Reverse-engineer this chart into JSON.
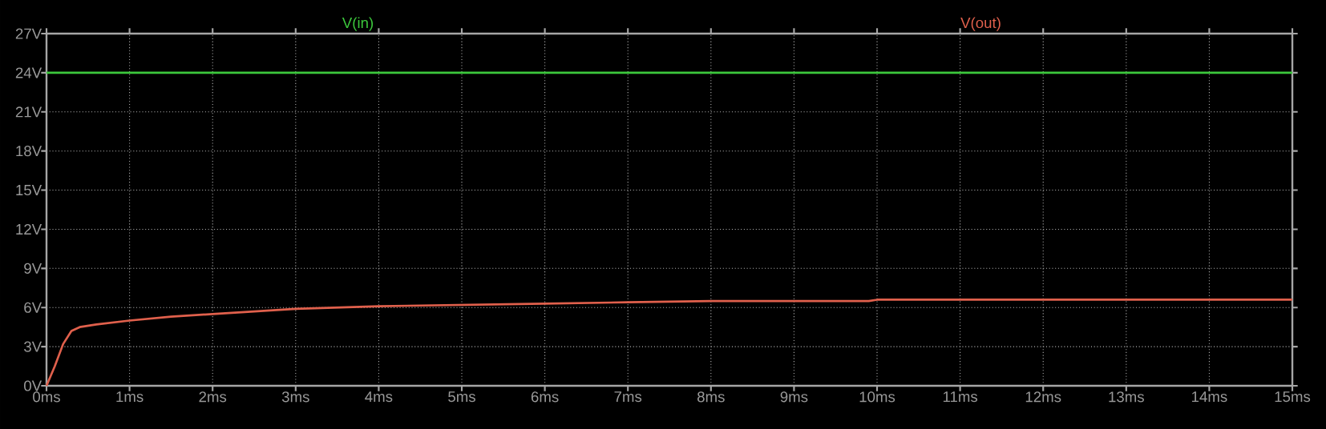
{
  "chart_data": {
    "type": "line",
    "series": [
      {
        "name": "V(in)",
        "color": "#3cc83c",
        "x": [
          0,
          15
        ],
        "values": [
          24,
          24
        ]
      },
      {
        "name": "V(out)",
        "color": "#e0604c",
        "x": [
          0,
          0.1,
          0.2,
          0.3,
          0.4,
          0.6,
          1,
          1.5,
          2,
          2.5,
          3,
          3.5,
          4,
          5,
          6,
          7,
          8,
          9,
          9.9,
          10,
          12,
          15
        ],
        "values": [
          0,
          1.5,
          3.2,
          4.2,
          4.5,
          4.7,
          5.0,
          5.3,
          5.5,
          5.7,
          5.9,
          6.0,
          6.1,
          6.2,
          6.3,
          6.4,
          6.5,
          6.5,
          6.5,
          6.6,
          6.6,
          6.6
        ]
      }
    ],
    "xlim": [
      0,
      15
    ],
    "ylim": [
      0,
      27
    ],
    "xticks": [
      {
        "value": 0,
        "label": "0ms"
      },
      {
        "value": 1,
        "label": "1ms"
      },
      {
        "value": 2,
        "label": "2ms"
      },
      {
        "value": 3,
        "label": "3ms"
      },
      {
        "value": 4,
        "label": "4ms"
      },
      {
        "value": 5,
        "label": "5ms"
      },
      {
        "value": 6,
        "label": "6ms"
      },
      {
        "value": 7,
        "label": "7ms"
      },
      {
        "value": 8,
        "label": "8ms"
      },
      {
        "value": 9,
        "label": "9ms"
      },
      {
        "value": 10,
        "label": "10ms"
      },
      {
        "value": 11,
        "label": "11ms"
      },
      {
        "value": 12,
        "label": "12ms"
      },
      {
        "value": 13,
        "label": "13ms"
      },
      {
        "value": 14,
        "label": "14ms"
      },
      {
        "value": 15,
        "label": "15ms"
      }
    ],
    "yticks": [
      {
        "value": 0,
        "label": "0V"
      },
      {
        "value": 3,
        "label": "3V"
      },
      {
        "value": 6,
        "label": "6V"
      },
      {
        "value": 9,
        "label": "9V"
      },
      {
        "value": 12,
        "label": "12V"
      },
      {
        "value": 15,
        "label": "15V"
      },
      {
        "value": 18,
        "label": "18V"
      },
      {
        "value": 21,
        "label": "21V"
      },
      {
        "value": 24,
        "label": "24V"
      },
      {
        "value": 27,
        "label": "27V"
      }
    ],
    "grid": true,
    "line_style": "solid",
    "marker": "none"
  }
}
